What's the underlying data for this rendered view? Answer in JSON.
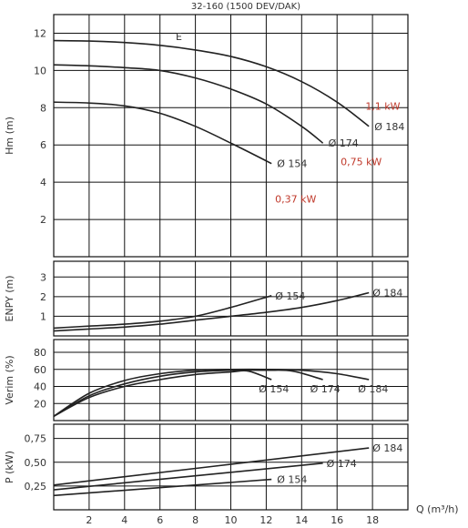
{
  "title": "32-160 (1500 DEV/DAK)",
  "region_label": "E",
  "xlabel": "Q (m³/h)",
  "x_ticks": [
    "2",
    "4",
    "6",
    "8",
    "10",
    "12",
    "14",
    "16",
    "18"
  ],
  "diameter_symbol": "Ø",
  "chart_data": [
    {
      "type": "line",
      "ylabel": "Hm (m)",
      "xlim": [
        0,
        20
      ],
      "ylim": [
        0,
        13
      ],
      "y_ticks": [
        2,
        4,
        6,
        8,
        10,
        12
      ],
      "series": [
        {
          "name": "154",
          "x": [
            0,
            2,
            4,
            6,
            8,
            10,
            12.3
          ],
          "y": [
            8.3,
            8.25,
            8.1,
            7.7,
            7.0,
            6.1,
            5.0
          ]
        },
        {
          "name": "174",
          "x": [
            0,
            2,
            4,
            6,
            8,
            10,
            12,
            14,
            15.2
          ],
          "y": [
            10.3,
            10.25,
            10.15,
            10.0,
            9.6,
            9.0,
            8.2,
            7.0,
            6.1
          ]
        },
        {
          "name": "184",
          "x": [
            0,
            2,
            4,
            6,
            8,
            10,
            12,
            14,
            16,
            17.8
          ],
          "y": [
            11.6,
            11.58,
            11.5,
            11.35,
            11.1,
            10.75,
            10.2,
            9.4,
            8.3,
            7.0
          ]
        }
      ],
      "annotations": [
        {
          "text": "1,1 kW",
          "x": 17.6,
          "y": 7.9
        },
        {
          "text": "0,75 kW",
          "x": 16.2,
          "y": 4.9
        },
        {
          "text": "0,37 kW",
          "x": 12.5,
          "y": 2.9
        }
      ]
    },
    {
      "type": "line",
      "ylabel": "ENPY (m)",
      "xlim": [
        0,
        20
      ],
      "ylim": [
        0,
        3.8
      ],
      "y_ticks": [
        1,
        2,
        3
      ],
      "series": [
        {
          "name": "154",
          "x": [
            0,
            2,
            4,
            6,
            8,
            10,
            12.3
          ],
          "y": [
            0.4,
            0.5,
            0.6,
            0.75,
            1.0,
            1.45,
            2.05
          ]
        },
        {
          "name": "184",
          "x": [
            0,
            2,
            4,
            6,
            8,
            10,
            12,
            14,
            16,
            17.8
          ],
          "y": [
            0.25,
            0.35,
            0.45,
            0.6,
            0.8,
            1.0,
            1.2,
            1.45,
            1.8,
            2.2
          ]
        }
      ]
    },
    {
      "type": "line",
      "ylabel": "Verim (%)",
      "xlim": [
        0,
        20
      ],
      "ylim": [
        0,
        95
      ],
      "y_ticks": [
        20,
        40,
        60,
        80
      ],
      "series": [
        {
          "name": "154",
          "x": [
            0,
            2,
            4,
            6,
            8,
            10,
            11,
            12.3
          ],
          "y": [
            5,
            27,
            40,
            48,
            54,
            57,
            58,
            48
          ]
        },
        {
          "name": "174",
          "x": [
            0,
            2,
            4,
            6,
            8,
            10,
            12,
            13.5,
            15.2
          ],
          "y": [
            5,
            29,
            43,
            52,
            57,
            59,
            59,
            58,
            48
          ]
        },
        {
          "name": "184",
          "x": [
            0,
            2,
            4,
            6,
            8,
            10,
            12,
            14,
            16,
            17.8
          ],
          "y": [
            5,
            32,
            47,
            55,
            59,
            60,
            60,
            59,
            55,
            48
          ]
        }
      ]
    },
    {
      "type": "line",
      "ylabel": "P (kW)",
      "xlim": [
        0,
        20
      ],
      "ylim": [
        0,
        0.9
      ],
      "y_ticks": [
        "0,25",
        "0,50",
        "0,75"
      ],
      "y_tick_values": [
        0.25,
        0.5,
        0.75
      ],
      "series": [
        {
          "name": "154",
          "x": [
            0,
            12.3
          ],
          "y": [
            0.15,
            0.32
          ]
        },
        {
          "name": "174",
          "x": [
            0,
            15.2
          ],
          "y": [
            0.21,
            0.49
          ]
        },
        {
          "name": "184",
          "x": [
            0,
            17.8
          ],
          "y": [
            0.26,
            0.65
          ]
        }
      ]
    }
  ]
}
